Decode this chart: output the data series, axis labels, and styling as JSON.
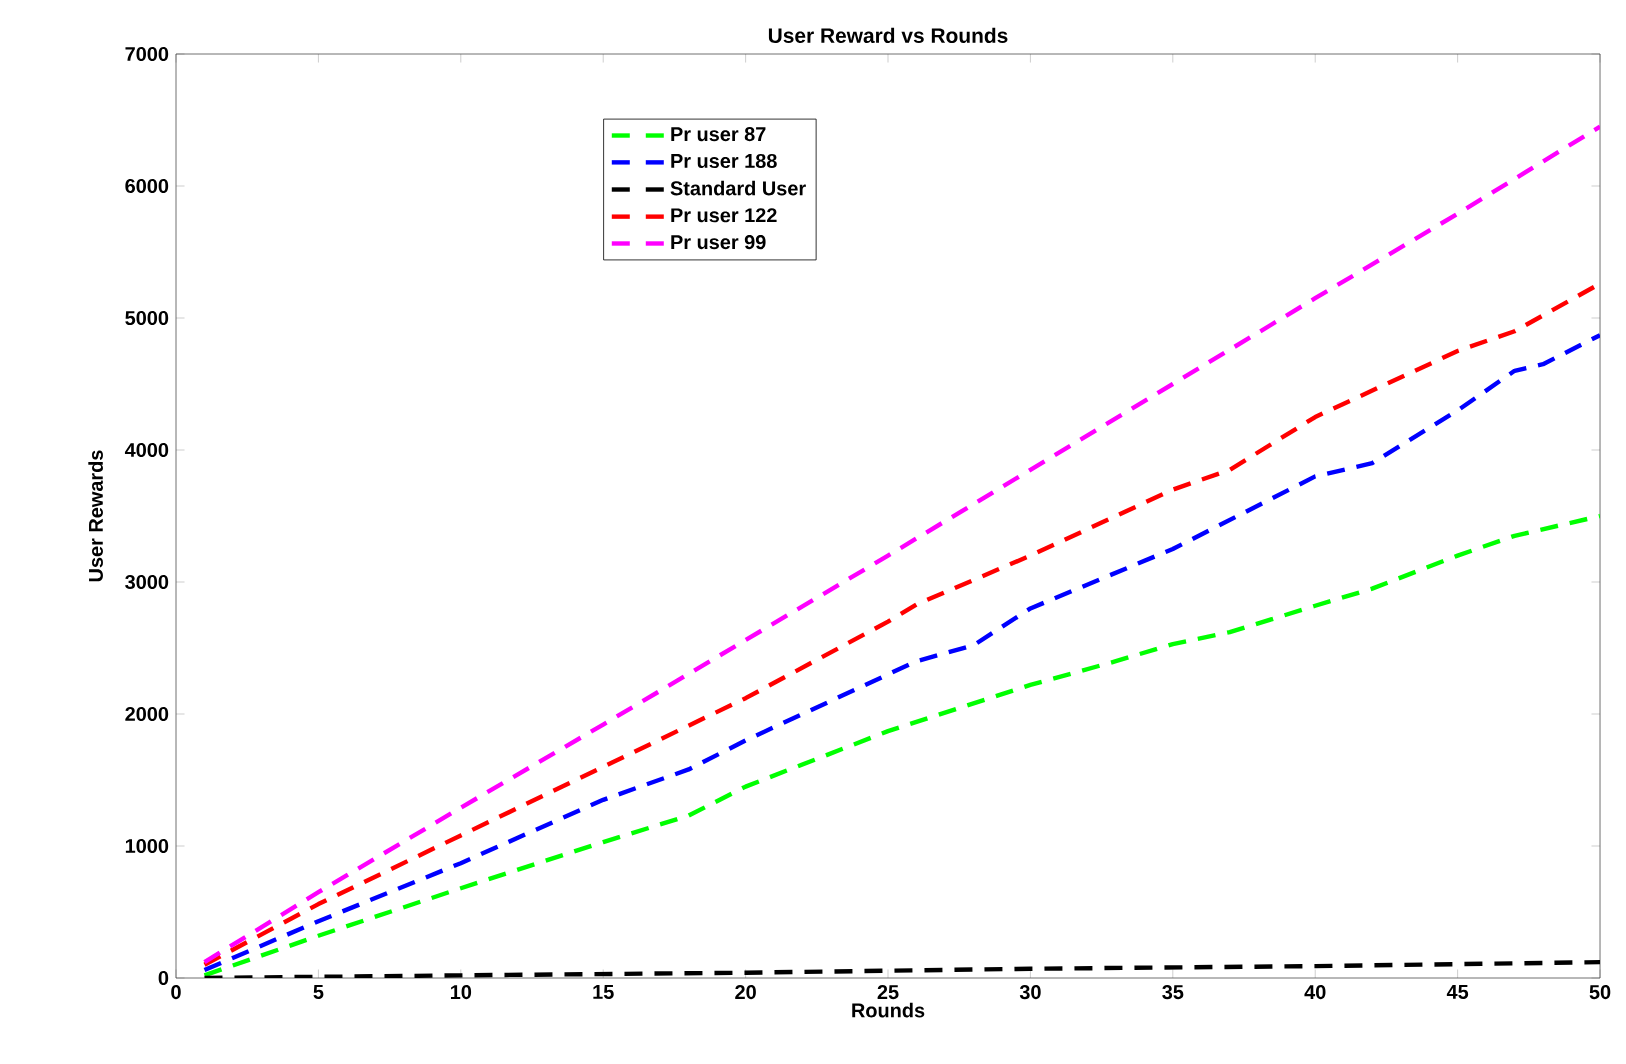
{
  "chart_data": {
    "type": "line",
    "title": "User Reward vs Rounds",
    "xlabel": "Rounds",
    "ylabel": "User Rewards",
    "xlim": [
      0,
      50
    ],
    "ylim": [
      0,
      7000
    ],
    "xticks": [
      0,
      5,
      10,
      15,
      20,
      25,
      30,
      35,
      40,
      45,
      50
    ],
    "yticks": [
      0,
      1000,
      2000,
      3000,
      4000,
      5000,
      6000,
      7000
    ],
    "grid": false,
    "legend": "top",
    "line_style": "dashed",
    "marker": "none",
    "series": [
      {
        "name": "Pr user 87",
        "color": "#00ff00",
        "x": [
          1,
          5,
          10,
          15,
          18,
          20,
          25,
          30,
          33,
          35,
          37,
          40,
          42,
          45,
          47,
          50
        ],
        "values": [
          20,
          320,
          680,
          1030,
          1230,
          1450,
          1870,
          2220,
          2400,
          2530,
          2620,
          2820,
          2950,
          3200,
          3350,
          3500
        ]
      },
      {
        "name": "Pr user 188",
        "color": "#0000ff",
        "x": [
          1,
          5,
          10,
          15,
          18,
          20,
          25,
          26,
          28,
          30,
          35,
          40,
          42,
          45,
          47,
          48,
          50
        ],
        "values": [
          60,
          430,
          870,
          1350,
          1580,
          1800,
          2300,
          2400,
          2520,
          2800,
          3250,
          3800,
          3900,
          4300,
          4600,
          4650,
          4870
        ]
      },
      {
        "name": "Standard User",
        "color": "#000000",
        "x": [
          1,
          10,
          20,
          30,
          40,
          50
        ],
        "values": [
          0,
          20,
          40,
          70,
          90,
          120
        ]
      },
      {
        "name": "Pr user 122",
        "color": "#ff0000",
        "x": [
          1,
          5,
          10,
          15,
          20,
          25,
          26,
          30,
          35,
          37,
          40,
          45,
          47,
          50
        ],
        "values": [
          100,
          560,
          1080,
          1600,
          2120,
          2700,
          2830,
          3200,
          3700,
          3850,
          4250,
          4750,
          4900,
          5260
        ]
      },
      {
        "name": "Pr user 99",
        "color": "#ff00ff",
        "x": [
          1,
          5,
          10,
          15,
          20,
          25,
          30,
          35,
          40,
          45,
          50
        ],
        "values": [
          120,
          650,
          1290,
          1920,
          2560,
          3200,
          3850,
          4500,
          5150,
          5790,
          6450
        ]
      }
    ]
  }
}
